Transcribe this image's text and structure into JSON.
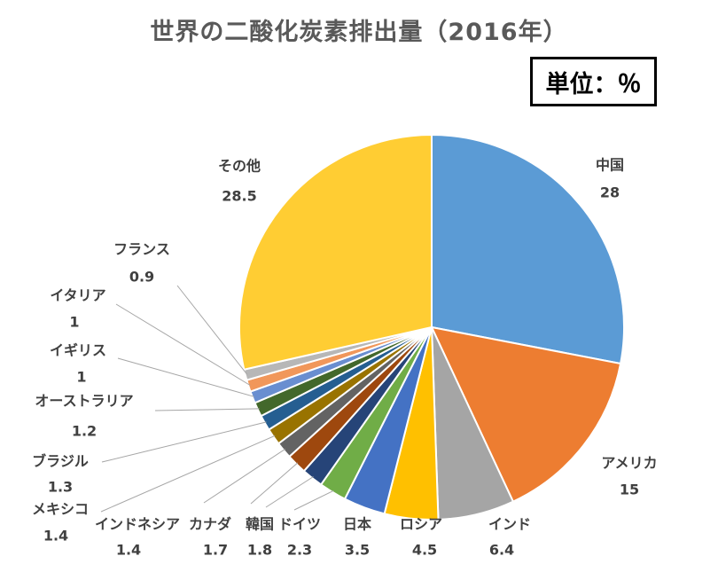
{
  "title": "世界の二酸化炭素排出量（2016年）",
  "unit_label": "単位：％",
  "chart_data": {
    "type": "pie",
    "title": "世界の二酸化炭素排出量（2016年）",
    "unit": "％",
    "categories": [
      "中国",
      "アメリカ",
      "インド",
      "ロシア",
      "日本",
      "ドイツ",
      "韓国",
      "カナダ",
      "インドネシア",
      "メキシコ",
      "ブラジル",
      "オーストラリア",
      "イギリス",
      "イタリア",
      "フランス",
      "その他"
    ],
    "values": [
      28,
      15,
      6.4,
      4.5,
      3.5,
      2.3,
      1.8,
      1.7,
      1.4,
      1.4,
      1.3,
      1.2,
      1,
      1,
      0.9,
      28.5
    ],
    "value_labels": [
      "28",
      "15",
      "6.4",
      "4.5",
      "3.5",
      "2.3",
      "1.8",
      "1.7",
      "1.4",
      "1.4",
      "1.3",
      "1.2",
      "1",
      "1",
      "0.9",
      "28.5"
    ],
    "colors": [
      "#5b9bd5",
      "#ed7d31",
      "#a5a5a5",
      "#ffc000",
      "#4472c4",
      "#70ad47",
      "#264478",
      "#9e480e",
      "#636363",
      "#997300",
      "#255e91",
      "#43682b",
      "#698ed0",
      "#f1975a",
      "#b7b7b7",
      "#ffcd33"
    ],
    "start_angle_deg": 0,
    "direction": "clockwise",
    "legend": "none",
    "data_labels": "outside with leader lines"
  }
}
